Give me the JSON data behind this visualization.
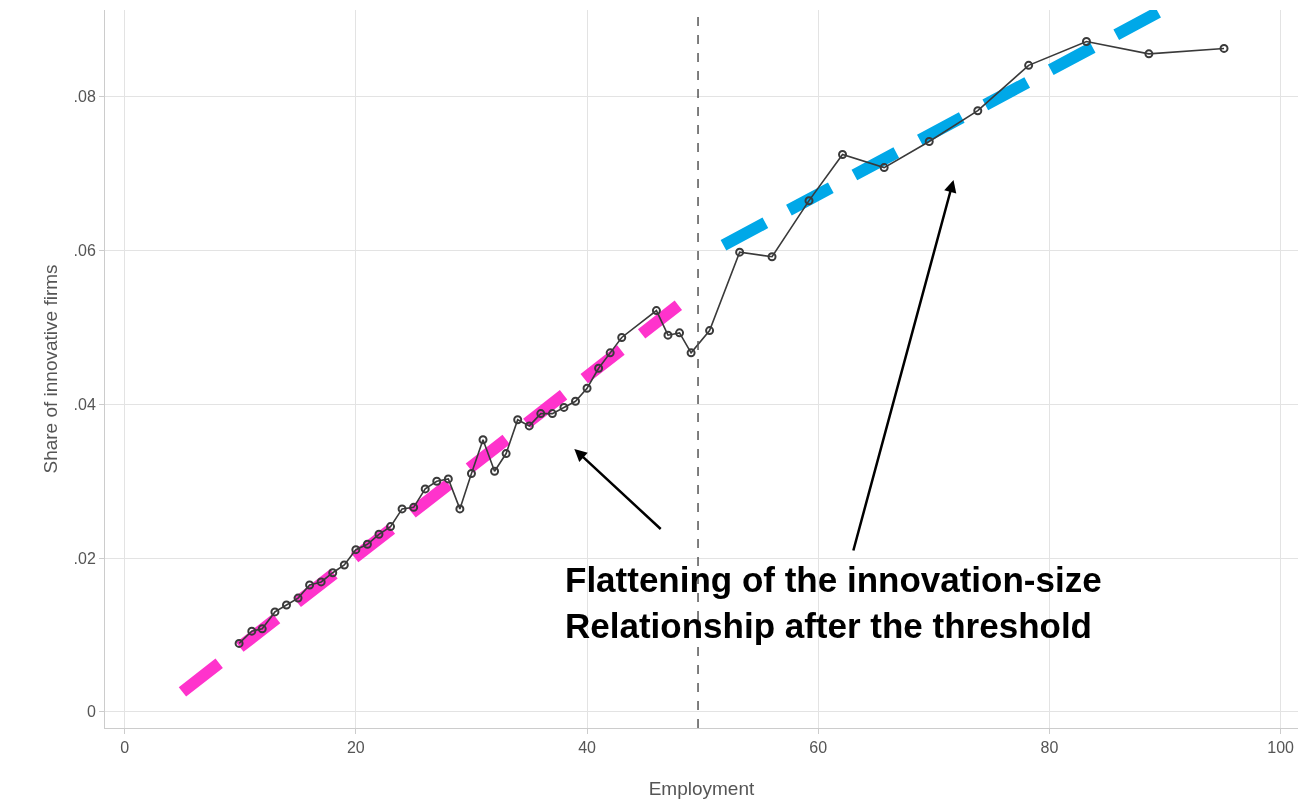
{
  "chart_data": {
    "type": "line",
    "xlabel": "Employment",
    "ylabel": "Share of innovative firms",
    "xlim": [
      -1.7,
      101.5
    ],
    "xticks": [
      0,
      20,
      40,
      60,
      80,
      100
    ],
    "ylim": [
      -0.0021,
      0.0913
    ],
    "yticks": [
      0,
      {
        "value": 0.02,
        "label": ".02"
      },
      {
        "value": 0.04,
        "label": ".04"
      },
      {
        "value": 0.06,
        "label": ".06"
      },
      {
        "value": 0.08,
        "label": ".08"
      }
    ],
    "grid": true,
    "marker": "circle",
    "line_style": "solid",
    "series": [
      {
        "color": "#3a3a3a",
        "x": [
          9.9,
          11,
          11.9,
          13,
          14,
          15,
          16,
          17,
          18,
          19,
          20,
          21,
          22,
          23,
          24,
          25,
          26,
          27,
          28,
          29,
          30,
          31,
          32,
          33,
          34,
          35,
          36,
          37,
          38,
          39,
          40,
          41,
          42,
          43,
          46,
          47,
          48,
          49,
          50.6,
          53.2,
          56,
          59.2,
          62.1,
          65.7,
          69.6,
          73.8,
          78.2,
          83.2,
          88.6,
          95.1
        ],
        "values": [
          0.0089,
          0.0105,
          0.0108,
          0.013,
          0.0139,
          0.0148,
          0.0165,
          0.0169,
          0.0181,
          0.0191,
          0.0211,
          0.0218,
          0.0231,
          0.0241,
          0.0264,
          0.0266,
          0.029,
          0.03,
          0.0303,
          0.0264,
          0.031,
          0.0354,
          0.0313,
          0.0336,
          0.038,
          0.0372,
          0.0388,
          0.0388,
          0.0396,
          0.0404,
          0.0421,
          0.0447,
          0.0467,
          0.0487,
          0.0522,
          0.049,
          0.0493,
          0.0467,
          0.0496,
          0.0598,
          0.0592,
          0.0665,
          0.0725,
          0.0708,
          0.0742,
          0.0782,
          0.0841,
          0.0872,
          0.0856,
          0.0863
        ]
      },
      {
        "type": "line",
        "color": "#ff33cc",
        "line_style": "dashed",
        "marker": "none",
        "x": [
          5.0,
          47.9
        ],
        "values": [
          0.0026,
          0.0529
        ]
      },
      {
        "type": "line",
        "color": "#00a8e8",
        "line_style": "dashed",
        "marker": "none",
        "x": [
          51.8,
          89.4
        ],
        "values": [
          0.0607,
          0.091
        ]
      }
    ],
    "ref_lines": [
      {
        "axis": "x",
        "value": 49.6,
        "color": "#555555",
        "line_style": "dashed"
      }
    ],
    "annotations": [
      "Flattening of the innovation-size\nRelationship after the threshold"
    ]
  }
}
